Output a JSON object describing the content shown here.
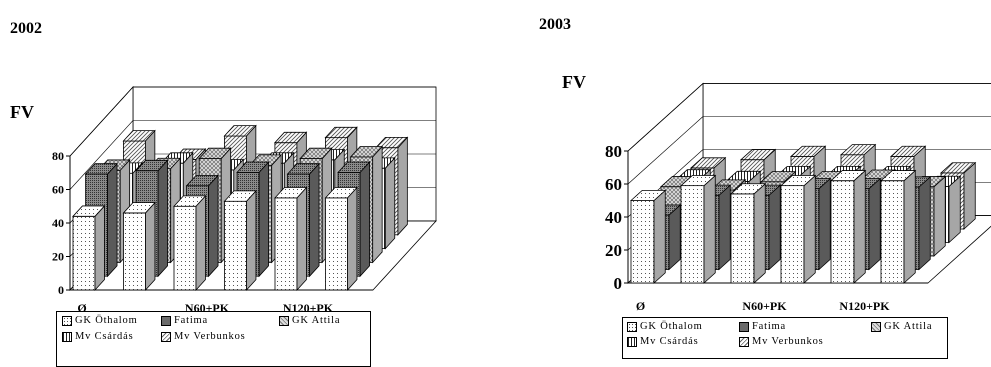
{
  "colors": {
    "GK Öthalom": "#ffffff",
    "Fatima": "#707070",
    "GK Attila": "#d6d6d6",
    "Mv Csárdás": "#ffffff",
    "Mv Verbunkos": "#ffffff"
  },
  "patterns": {
    "GK Öthalom": "dots",
    "Fatima": "dense-dots",
    "GK Attila": "cross-hatch",
    "Mv Csárdás": "vertical-lines",
    "Mv Verbunkos": "diagonal-hatch"
  },
  "chart_data": [
    {
      "type": "bar",
      "subtype": "3d-clustered-depth",
      "title": "2002",
      "ylabel": "FV",
      "ylim": [
        0,
        80
      ],
      "yticks": [
        "0",
        "20",
        "40",
        "60",
        "80"
      ],
      "category_labels": [
        "Ø",
        "",
        "N60+PK",
        "",
        "N120+PK",
        ""
      ],
      "series": [
        {
          "name": "GK Öthalom",
          "values": [
            44,
            46,
            50,
            53,
            55,
            55
          ]
        },
        {
          "name": "Fatima",
          "values": [
            61,
            63,
            54,
            62,
            61,
            62
          ]
        },
        {
          "name": "GK Attila",
          "values": [
            55,
            56,
            62,
            58,
            62,
            63
          ]
        },
        {
          "name": "Mv Csárdás",
          "values": [
            45,
            51,
            47,
            51,
            53,
            48
          ]
        },
        {
          "name": "Mv Verbunkos",
          "values": [
            56,
            45,
            59,
            55,
            58,
            52
          ]
        }
      ],
      "legend": {
        "position": "bottom",
        "rows": [
          [
            "GK Öthalom",
            "Fatima",
            "GK Attila"
          ],
          [
            "Mv Csárdás",
            "Mv Verbunkos"
          ]
        ]
      },
      "grid": true
    },
    {
      "type": "bar",
      "subtype": "3d-clustered-depth",
      "title": "2003",
      "ylabel": "FV",
      "ylim": [
        0,
        80
      ],
      "yticks": [
        "0",
        "20",
        "40",
        "60",
        "80"
      ],
      "category_labels": [
        "Ø",
        "",
        "N60+PK",
        "",
        "N120+PK",
        ""
      ],
      "series": [
        {
          "name": "GK Öthalom",
          "values": [
            50,
            59,
            54,
            59,
            62,
            62
          ]
        },
        {
          "name": "Fatima",
          "values": [
            33,
            45,
            45,
            49,
            49,
            50
          ]
        },
        {
          "name": "GK Attila",
          "values": [
            42,
            40,
            45,
            45,
            46,
            42
          ]
        },
        {
          "name": "Mv Csárdás",
          "values": [
            38,
            37,
            40,
            40,
            40,
            34
          ]
        },
        {
          "name": "Mv Verbunkos",
          "values": [
            37,
            42,
            44,
            45,
            44,
            34
          ]
        }
      ],
      "legend": {
        "position": "bottom",
        "rows": [
          [
            "GK Öthalom",
            "Fatima",
            "GK Attila"
          ],
          [
            "Mv Csárdás",
            "Mv Verbunkos"
          ]
        ]
      },
      "grid": true
    }
  ]
}
